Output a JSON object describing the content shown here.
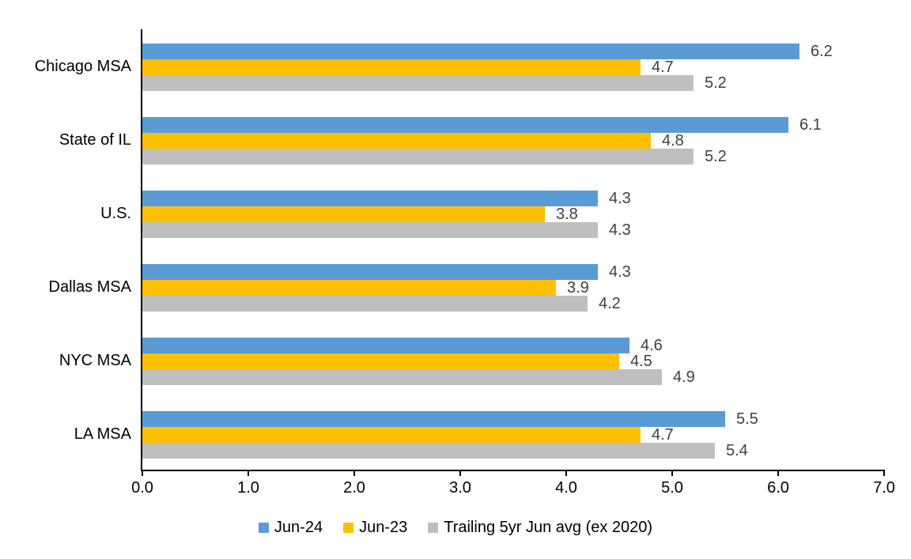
{
  "chart_data": {
    "type": "bar",
    "orientation": "horizontal",
    "title": "",
    "xlabel": "",
    "ylabel": "",
    "grid": false,
    "data_labels": true,
    "legend_position": "bottom",
    "categories": [
      "Chicago MSA",
      "State of IL",
      "U.S.",
      "Dallas MSA",
      "NYC MSA",
      "LA MSA"
    ],
    "series": [
      {
        "name": "Jun-24",
        "color": "#5B9BD5",
        "values": [
          6.2,
          6.1,
          4.3,
          4.3,
          4.6,
          5.5
        ],
        "labels": [
          "6.2",
          "6.1",
          "4.3",
          "4.3",
          "4.6",
          "5.5"
        ]
      },
      {
        "name": "Jun-23",
        "color": "#FFC000",
        "values": [
          4.7,
          4.8,
          3.8,
          3.9,
          4.5,
          4.7
        ],
        "labels": [
          "4.7",
          "4.8",
          "3.8",
          "3.9",
          "4.5",
          "4.7"
        ]
      },
      {
        "name": "Trailing 5yr Jun avg (ex 2020)",
        "color": "#BFBFBF",
        "values": [
          5.2,
          5.2,
          4.3,
          4.2,
          4.9,
          5.4
        ],
        "labels": [
          "5.2",
          "5.2",
          "4.3",
          "4.2",
          "4.9",
          "5.4"
        ]
      }
    ],
    "x_axis": {
      "min": 0,
      "max": 7,
      "tick_labels": [
        "0.0",
        "1.0",
        "2.0",
        "3.0",
        "4.0",
        "5.0",
        "6.0",
        "7.0"
      ]
    }
  },
  "colors": {
    "axis": "#000000",
    "value_label_text": "#404040",
    "category_text": "#000000",
    "background": "#FFFFFF"
  }
}
